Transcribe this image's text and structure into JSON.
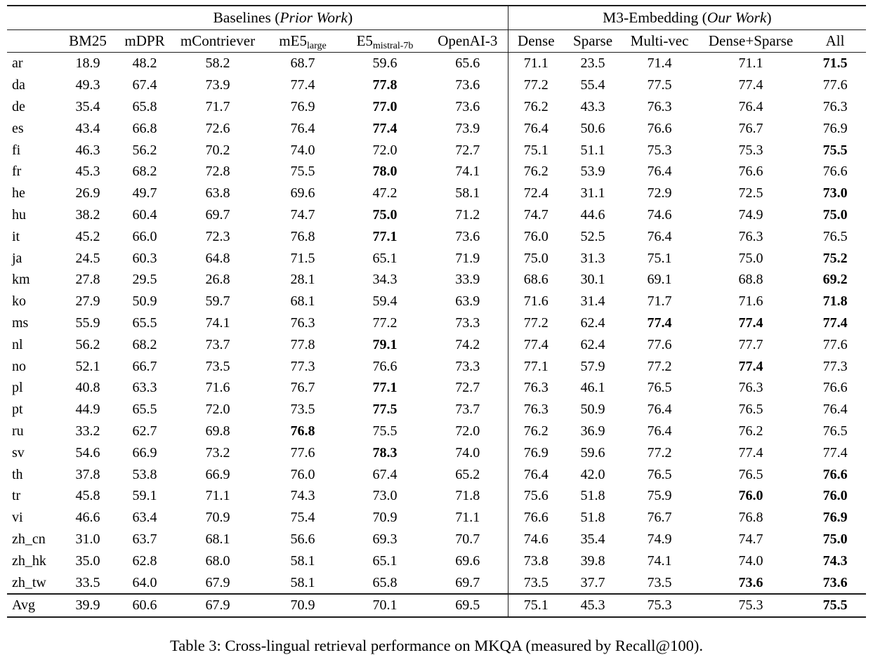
{
  "caption": "Table 3: Cross-lingual retrieval performance on MKQA (measured by Recall@100).",
  "colors": {
    "text": "#000000",
    "rule": "#1c1c1c",
    "background": "#ffffff"
  },
  "table": {
    "groups": [
      {
        "prefix": "Baselines (",
        "italic": "Prior Work",
        "suffix": ")",
        "span": 6
      },
      {
        "prefix": "M3-Embedding (",
        "italic": "Our Work",
        "suffix": ")",
        "span": 5
      }
    ],
    "columns": [
      {
        "main": "BM25"
      },
      {
        "main": "mDPR"
      },
      {
        "main": "mContriever"
      },
      {
        "main": "mE5",
        "sub": "large"
      },
      {
        "main": "E5",
        "sub": "mistral-7b"
      },
      {
        "main": "OpenAI-3"
      },
      {
        "main": "Dense"
      },
      {
        "main": "Sparse"
      },
      {
        "main": "Multi-vec"
      },
      {
        "main": "Dense+Sparse"
      },
      {
        "main": "All"
      }
    ],
    "rows": [
      {
        "lang": "ar",
        "values": [
          "18.9",
          "48.2",
          "58.2",
          "68.7",
          "59.6",
          "65.6",
          "71.1",
          "23.5",
          "71.4",
          "71.1",
          "71.5"
        ],
        "bold": [
          10
        ]
      },
      {
        "lang": "da",
        "values": [
          "49.3",
          "67.4",
          "73.9",
          "77.4",
          "77.8",
          "73.6",
          "77.2",
          "55.4",
          "77.5",
          "77.4",
          "77.6"
        ],
        "bold": [
          4
        ]
      },
      {
        "lang": "de",
        "values": [
          "35.4",
          "65.8",
          "71.7",
          "76.9",
          "77.0",
          "73.6",
          "76.2",
          "43.3",
          "76.3",
          "76.4",
          "76.3"
        ],
        "bold": [
          4
        ]
      },
      {
        "lang": "es",
        "values": [
          "43.4",
          "66.8",
          "72.6",
          "76.4",
          "77.4",
          "73.9",
          "76.4",
          "50.6",
          "76.6",
          "76.7",
          "76.9"
        ],
        "bold": [
          4
        ]
      },
      {
        "lang": "fi",
        "values": [
          "46.3",
          "56.2",
          "70.2",
          "74.0",
          "72.0",
          "72.7",
          "75.1",
          "51.1",
          "75.3",
          "75.3",
          "75.5"
        ],
        "bold": [
          10
        ]
      },
      {
        "lang": "fr",
        "values": [
          "45.3",
          "68.2",
          "72.8",
          "75.5",
          "78.0",
          "74.1",
          "76.2",
          "53.9",
          "76.4",
          "76.6",
          "76.6"
        ],
        "bold": [
          4
        ]
      },
      {
        "lang": "he",
        "values": [
          "26.9",
          "49.7",
          "63.8",
          "69.6",
          "47.2",
          "58.1",
          "72.4",
          "31.1",
          "72.9",
          "72.5",
          "73.0"
        ],
        "bold": [
          10
        ]
      },
      {
        "lang": "hu",
        "values": [
          "38.2",
          "60.4",
          "69.7",
          "74.7",
          "75.0",
          "71.2",
          "74.7",
          "44.6",
          "74.6",
          "74.9",
          "75.0"
        ],
        "bold": [
          4,
          10
        ]
      },
      {
        "lang": "it",
        "values": [
          "45.2",
          "66.0",
          "72.3",
          "76.8",
          "77.1",
          "73.6",
          "76.0",
          "52.5",
          "76.4",
          "76.3",
          "76.5"
        ],
        "bold": [
          4
        ]
      },
      {
        "lang": "ja",
        "values": [
          "24.5",
          "60.3",
          "64.8",
          "71.5",
          "65.1",
          "71.9",
          "75.0",
          "31.3",
          "75.1",
          "75.0",
          "75.2"
        ],
        "bold": [
          10
        ]
      },
      {
        "lang": "km",
        "values": [
          "27.8",
          "29.5",
          "26.8",
          "28.1",
          "34.3",
          "33.9",
          "68.6",
          "30.1",
          "69.1",
          "68.8",
          "69.2"
        ],
        "bold": [
          10
        ]
      },
      {
        "lang": "ko",
        "values": [
          "27.9",
          "50.9",
          "59.7",
          "68.1",
          "59.4",
          "63.9",
          "71.6",
          "31.4",
          "71.7",
          "71.6",
          "71.8"
        ],
        "bold": [
          10
        ]
      },
      {
        "lang": "ms",
        "values": [
          "55.9",
          "65.5",
          "74.1",
          "76.3",
          "77.2",
          "73.3",
          "77.2",
          "62.4",
          "77.4",
          "77.4",
          "77.4"
        ],
        "bold": [
          8,
          9,
          10
        ]
      },
      {
        "lang": "nl",
        "values": [
          "56.2",
          "68.2",
          "73.7",
          "77.8",
          "79.1",
          "74.2",
          "77.4",
          "62.4",
          "77.6",
          "77.7",
          "77.6"
        ],
        "bold": [
          4
        ]
      },
      {
        "lang": "no",
        "values": [
          "52.1",
          "66.7",
          "73.5",
          "77.3",
          "76.6",
          "73.3",
          "77.1",
          "57.9",
          "77.2",
          "77.4",
          "77.3"
        ],
        "bold": [
          9
        ]
      },
      {
        "lang": "pl",
        "values": [
          "40.8",
          "63.3",
          "71.6",
          "76.7",
          "77.1",
          "72.7",
          "76.3",
          "46.1",
          "76.5",
          "76.3",
          "76.6"
        ],
        "bold": [
          4
        ]
      },
      {
        "lang": "pt",
        "values": [
          "44.9",
          "65.5",
          "72.0",
          "73.5",
          "77.5",
          "73.7",
          "76.3",
          "50.9",
          "76.4",
          "76.5",
          "76.4"
        ],
        "bold": [
          4
        ]
      },
      {
        "lang": "ru",
        "values": [
          "33.2",
          "62.7",
          "69.8",
          "76.8",
          "75.5",
          "72.0",
          "76.2",
          "36.9",
          "76.4",
          "76.2",
          "76.5"
        ],
        "bold": [
          3
        ]
      },
      {
        "lang": "sv",
        "values": [
          "54.6",
          "66.9",
          "73.2",
          "77.6",
          "78.3",
          "74.0",
          "76.9",
          "59.6",
          "77.2",
          "77.4",
          "77.4"
        ],
        "bold": [
          4
        ]
      },
      {
        "lang": "th",
        "values": [
          "37.8",
          "53.8",
          "66.9",
          "76.0",
          "67.4",
          "65.2",
          "76.4",
          "42.0",
          "76.5",
          "76.5",
          "76.6"
        ],
        "bold": [
          10
        ]
      },
      {
        "lang": "tr",
        "values": [
          "45.8",
          "59.1",
          "71.1",
          "74.3",
          "73.0",
          "71.8",
          "75.6",
          "51.8",
          "75.9",
          "76.0",
          "76.0"
        ],
        "bold": [
          9,
          10
        ]
      },
      {
        "lang": "vi",
        "values": [
          "46.6",
          "63.4",
          "70.9",
          "75.4",
          "70.9",
          "71.1",
          "76.6",
          "51.8",
          "76.7",
          "76.8",
          "76.9"
        ],
        "bold": [
          10
        ]
      },
      {
        "lang": "zh_cn",
        "values": [
          "31.0",
          "63.7",
          "68.1",
          "56.6",
          "69.3",
          "70.7",
          "74.6",
          "35.4",
          "74.9",
          "74.7",
          "75.0"
        ],
        "bold": [
          10
        ]
      },
      {
        "lang": "zh_hk",
        "values": [
          "35.0",
          "62.8",
          "68.0",
          "58.1",
          "65.1",
          "69.6",
          "73.8",
          "39.8",
          "74.1",
          "74.0",
          "74.3"
        ],
        "bold": [
          10
        ]
      },
      {
        "lang": "zh_tw",
        "values": [
          "33.5",
          "64.0",
          "67.9",
          "58.1",
          "65.8",
          "69.7",
          "73.5",
          "37.7",
          "73.5",
          "73.6",
          "73.6"
        ],
        "bold": [
          9,
          10
        ]
      }
    ],
    "avg_row": {
      "lang": "Avg",
      "values": [
        "39.9",
        "60.6",
        "67.9",
        "70.9",
        "70.1",
        "69.5",
        "75.1",
        "45.3",
        "75.3",
        "75.3",
        "75.5"
      ],
      "bold": [
        10
      ]
    }
  }
}
